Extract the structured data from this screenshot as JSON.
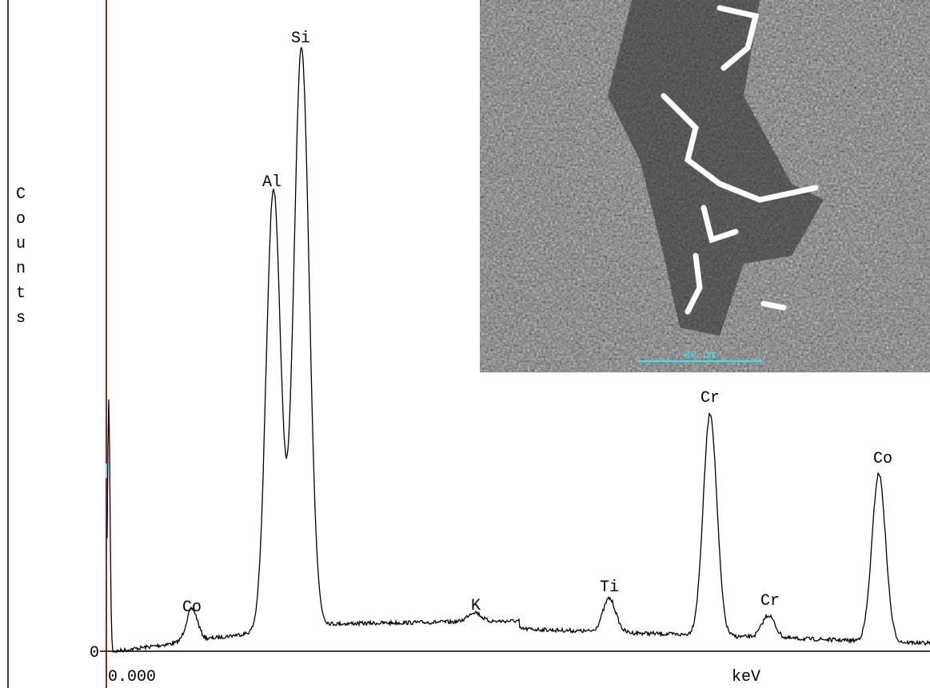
{
  "axis": {
    "y_title": "Counts",
    "y_zero": "0",
    "x_start": "0.000",
    "x_unit": "keV"
  },
  "peaks": [
    "Co",
    "Al",
    "Si",
    "K",
    "Ti",
    "Cr",
    "Cr",
    "Co"
  ],
  "image": {
    "scale_bar": "80 um"
  }
}
